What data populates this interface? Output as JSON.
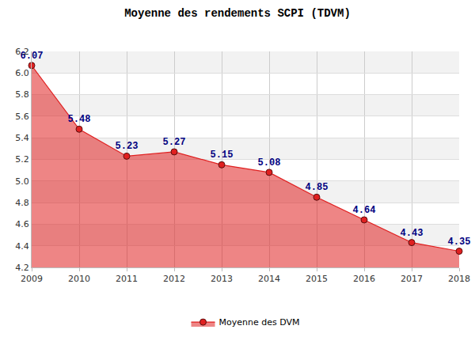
{
  "chart_data": {
    "type": "area",
    "title": "Moyenne des rendements SCPI (TDVM)",
    "categories": [
      "2009",
      "2010",
      "2011",
      "2012",
      "2013",
      "2014",
      "2015",
      "2016",
      "2017",
      "2018"
    ],
    "series": [
      {
        "name": "Moyenne des DVM",
        "color": "#e02020",
        "marker": "circle",
        "values": [
          6.07,
          5.48,
          5.23,
          5.27,
          5.15,
          5.08,
          4.85,
          4.64,
          4.43,
          4.35
        ]
      }
    ],
    "ylim": [
      4.2,
      6.2
    ],
    "yticks": [
      4.2,
      4.4,
      4.6,
      4.8,
      {
        "value": 5,
        "label": "5.0"
      },
      5.2,
      5.4,
      5.6,
      5.8,
      {
        "value": 6,
        "label": "6.0"
      },
      6.2
    ],
    "grid": true,
    "data_labels": true,
    "legend": "bottom"
  }
}
